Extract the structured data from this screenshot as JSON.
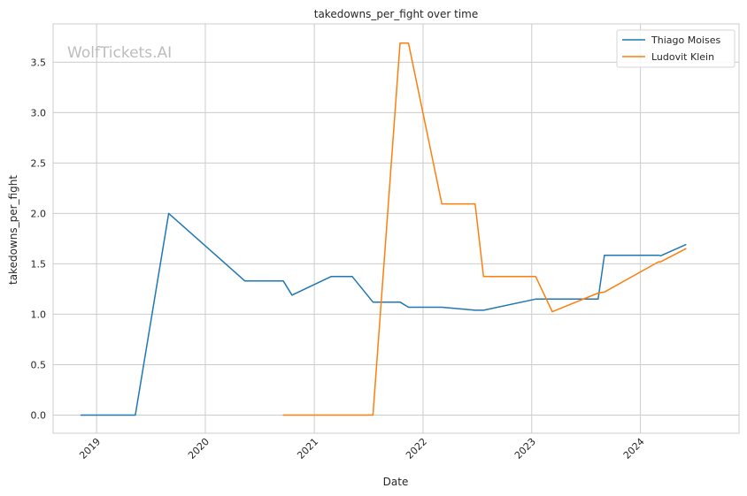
{
  "chart_data": {
    "type": "line",
    "title": "takedowns_per_fight over time",
    "xlabel": "Date",
    "ylabel": "takedowns_per_fight",
    "watermark": "WolfTickets.AI",
    "x_ticks": [
      "2019",
      "2020",
      "2021",
      "2022",
      "2023",
      "2024"
    ],
    "y_ticks": [
      "0.0",
      "0.5",
      "1.0",
      "1.5",
      "2.0",
      "2.5",
      "3.0",
      "3.5"
    ],
    "ylim": [
      -0.18,
      3.88
    ],
    "xlim": [
      "2018-08-08",
      "2024-11-27"
    ],
    "grid": true,
    "legend_position": "top-right",
    "series": [
      {
        "name": "Thiago Moises",
        "color": "#1f77b4",
        "points": [
          [
            "2018-11-10",
            0.0
          ],
          [
            "2019-05-11",
            0.0
          ],
          [
            "2019-08-31",
            2.0
          ],
          [
            "2020-05-13",
            1.33
          ],
          [
            "2020-09-19",
            1.33
          ],
          [
            "2020-10-18",
            1.19
          ],
          [
            "2021-02-27",
            1.375
          ],
          [
            "2021-05-08",
            1.375
          ],
          [
            "2021-07-17",
            1.12
          ],
          [
            "2021-10-16",
            1.12
          ],
          [
            "2021-11-13",
            1.07
          ],
          [
            "2022-03-05",
            1.07
          ],
          [
            "2022-06-25",
            1.04
          ],
          [
            "2022-07-23",
            1.04
          ],
          [
            "2023-01-14",
            1.15
          ],
          [
            "2023-08-12",
            1.15
          ],
          [
            "2023-09-02",
            1.585
          ],
          [
            "2024-03-02",
            1.585
          ],
          [
            "2024-03-09",
            1.58
          ],
          [
            "2024-06-01",
            1.69
          ]
        ]
      },
      {
        "name": "Ludovit Klein",
        "color": "#ff7f0e",
        "points": [
          [
            "2020-09-19",
            0.0
          ],
          [
            "2021-07-17",
            0.0
          ],
          [
            "2021-10-16",
            3.69
          ],
          [
            "2021-11-13",
            3.69
          ],
          [
            "2022-03-05",
            2.095
          ],
          [
            "2022-06-25",
            2.095
          ],
          [
            "2022-07-23",
            1.375
          ],
          [
            "2023-01-14",
            1.375
          ],
          [
            "2023-03-11",
            1.025
          ],
          [
            "2023-08-12",
            1.21
          ],
          [
            "2023-09-02",
            1.22
          ],
          [
            "2024-03-02",
            1.52
          ],
          [
            "2024-03-09",
            1.52
          ],
          [
            "2024-06-01",
            1.65
          ]
        ]
      }
    ]
  }
}
